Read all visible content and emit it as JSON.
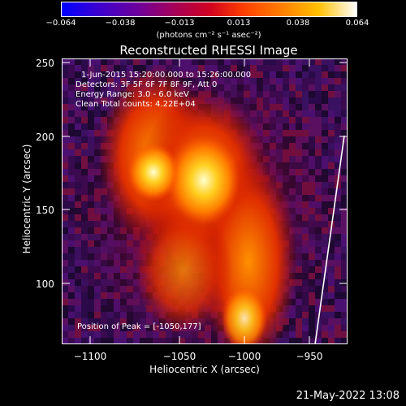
{
  "colorbar": {
    "ticks": [
      "−0.064",
      "−0.038",
      "−0.013",
      "0.013",
      "0.038",
      "0.064"
    ],
    "unit": "(photons cm⁻² s⁻¹ asec⁻²)",
    "colors": [
      "#0000ff",
      "#6a00a0",
      "#d00020",
      "#ff8000",
      "#ffc000",
      "#ffffff"
    ]
  },
  "title": "Reconstructed RHESSI Image",
  "info": {
    "time_range": "1-Jun-2015 15:20:00.000 to 15:26:00.000",
    "detectors": "Detectors: 3F 5F 6F 7F 8F 9F, Att 0",
    "energy": "Energy Range: 3.0 - 6.0 keV",
    "method": "Clean     Total counts: 4.22E+04",
    "peak": "Position of Peak = [-1050,177]"
  },
  "axes": {
    "xlabel": "Heliocentric X (arcsec)",
    "ylabel": "Heliocentric Y (arcsec)",
    "xticks": [
      "−1100",
      "−1050",
      "−1000",
      "−950"
    ],
    "yticks": [
      "250",
      "200",
      "150",
      "100"
    ],
    "xlim": [
      -1118,
      -922
    ],
    "ylim": [
      57,
      252
    ]
  },
  "footer": "21-May-2022 13:08"
}
